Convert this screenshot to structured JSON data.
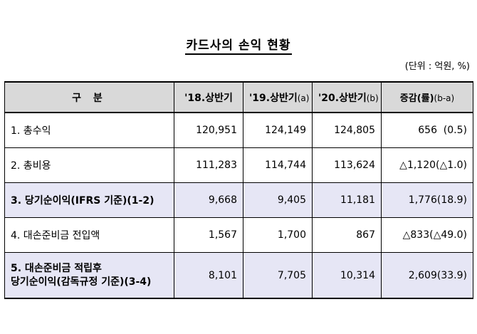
{
  "title": "카드사의 손익 현황",
  "unit": "(단위 : 억원, %)",
  "columns": {
    "label": "구 분",
    "h18": "'18.상반기",
    "h19": "'19.상반기",
    "h19_suffix": "(a)",
    "h20": "'20.상반기",
    "h20_suffix": "(b)",
    "change": "증감(률)",
    "change_suffix": "(b-a)"
  },
  "rows": [
    {
      "label": "1. 총수익",
      "h18": "120,951",
      "h19": "124,149",
      "h20": "124,805",
      "change": "656",
      "rate": "(0.5)"
    },
    {
      "label": "2. 총비용",
      "h18": "111,283",
      "h19": "114,744",
      "h20": "113,624",
      "change": "△1,120",
      "rate": "(△1.0)"
    },
    {
      "label": "3. 당기순이익(IFRS 기준)(1-2)",
      "h18": "9,668",
      "h19": "9,405",
      "h20": "11,181",
      "change": "1,776",
      "rate": "(18.9)"
    },
    {
      "label": "4. 대손준비금 전입액",
      "h18": "1,567",
      "h19": "1,700",
      "h20": "867",
      "change": "△833",
      "rate": "(△49.0)"
    },
    {
      "label_line1": "5. 대손준비금 적립후",
      "label_line2": "당기순이익(감독규정 기준)(3-4)",
      "h18": "8,101",
      "h19": "7,705",
      "h20": "10,314",
      "change": "2,609",
      "rate": "(33.9)"
    }
  ],
  "colors": {
    "header_bg": "#d9d9d9",
    "highlight_bg": "#e6e6f5"
  }
}
